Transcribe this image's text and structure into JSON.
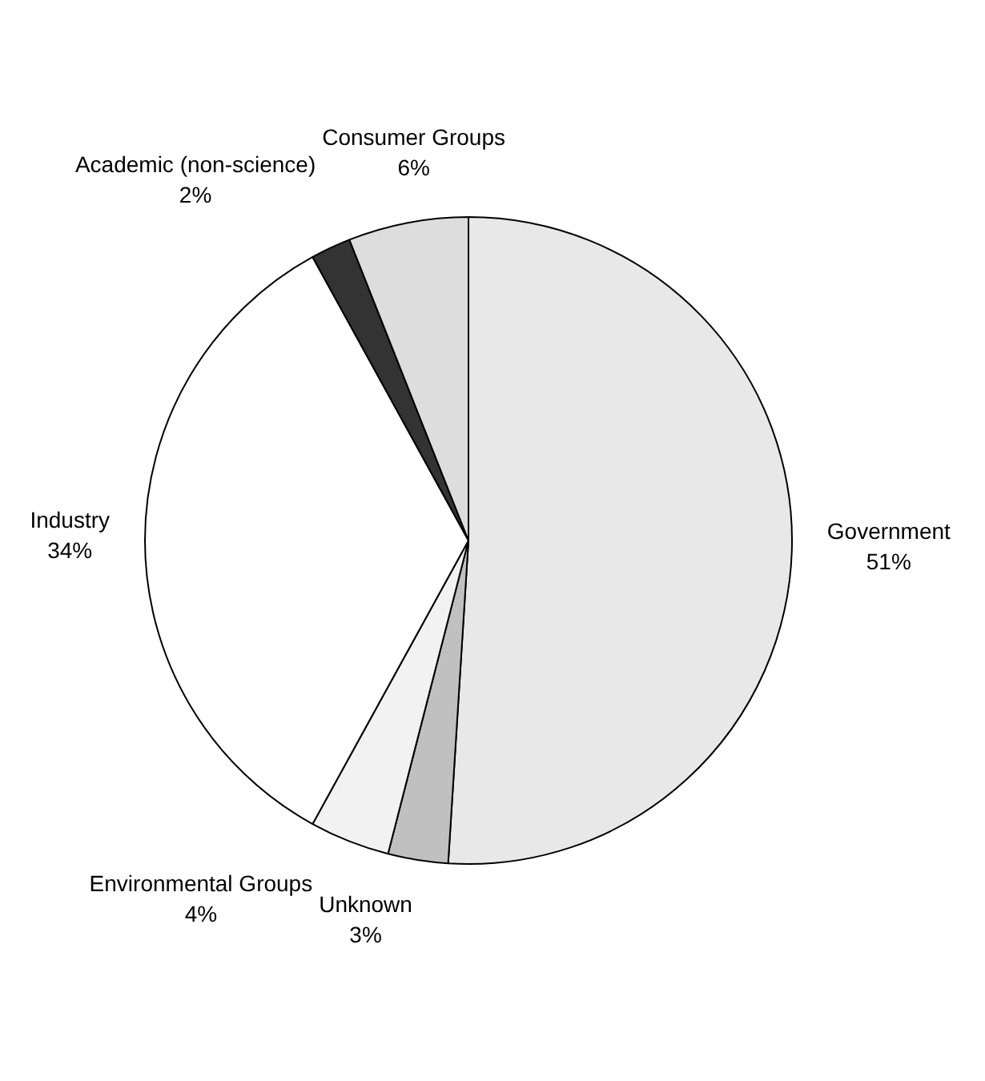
{
  "chart_data": {
    "type": "pie",
    "categories": [
      "Government",
      "Unknown",
      "Environmental Groups",
      "Industry",
      "Academic (non-science)",
      "Consumer Groups"
    ],
    "values": [
      51,
      3,
      4,
      34,
      2,
      6
    ],
    "colors": [
      "#e8e8e8",
      "#c0c0c0",
      "#f2f2f2",
      "#ffffff",
      "#333333",
      "#dddddd"
    ],
    "value_labels": [
      "51%",
      "3%",
      "4%",
      "34%",
      "2%",
      "6%"
    ],
    "legend": false
  }
}
